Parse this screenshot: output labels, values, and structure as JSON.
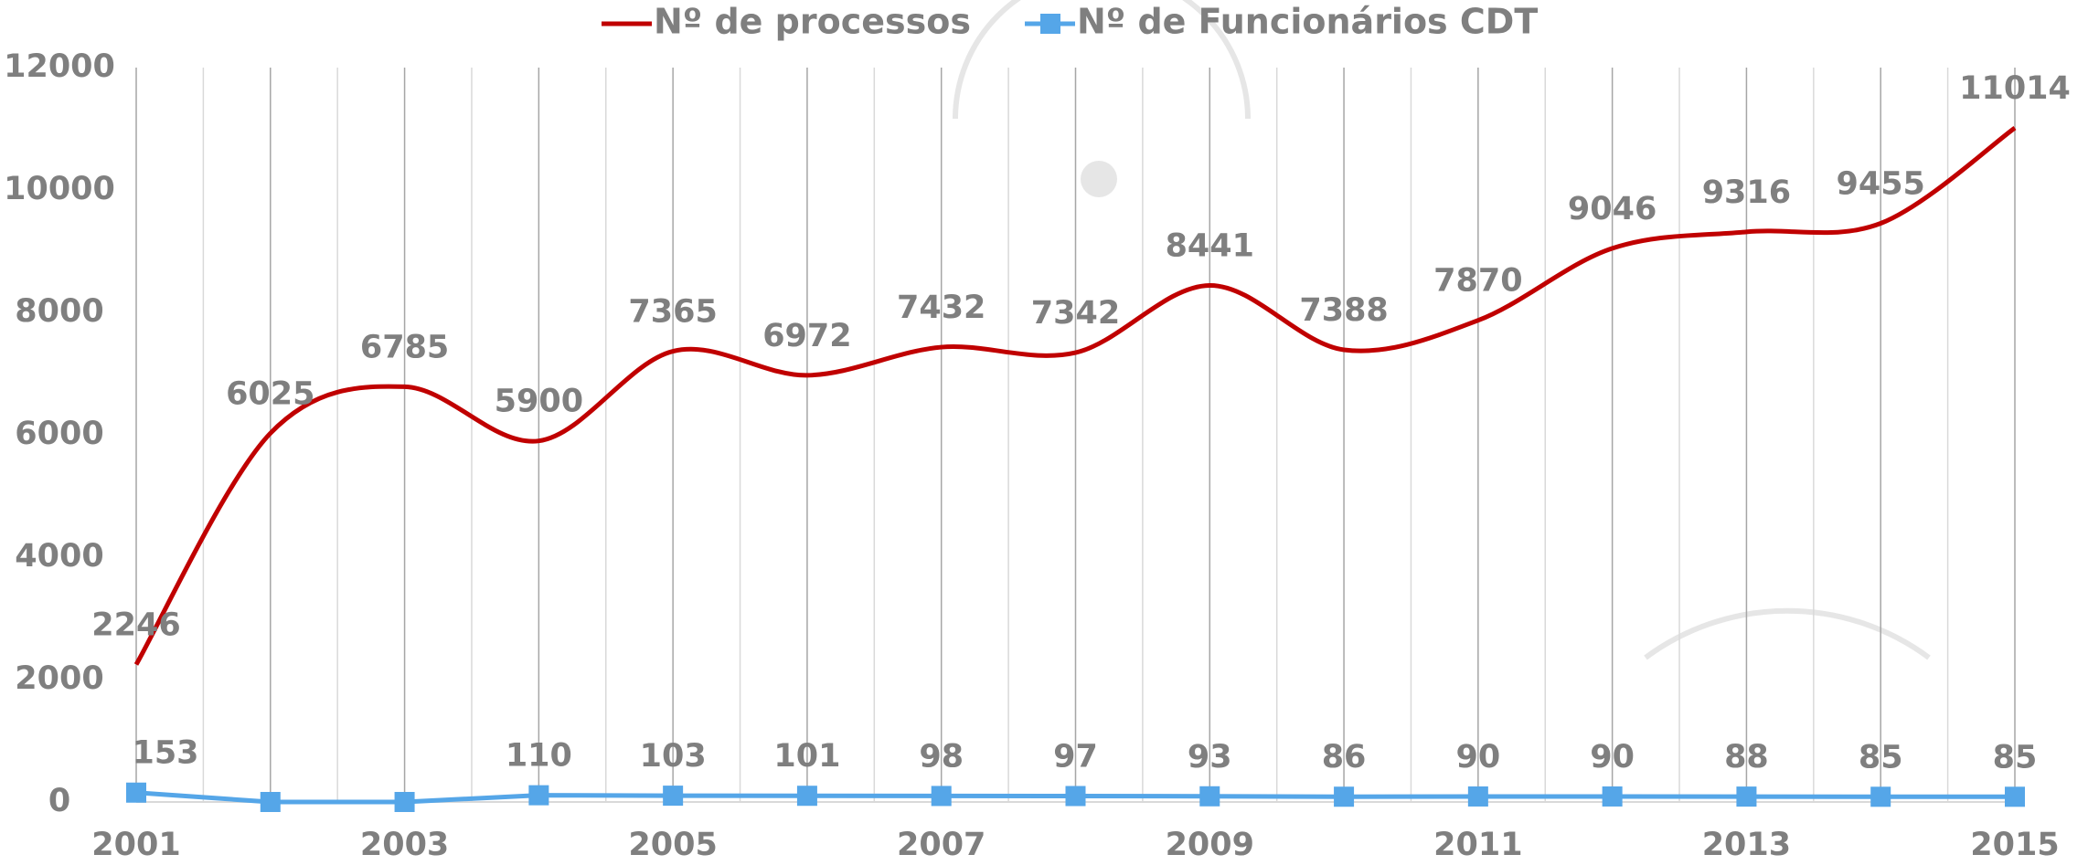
{
  "chart_data": {
    "type": "line",
    "x": [
      2001,
      2002,
      2003,
      2004,
      2005,
      2006,
      2007,
      2008,
      2009,
      2010,
      2011,
      2012,
      2013,
      2014,
      2015
    ],
    "xlim": [
      2001,
      2015
    ],
    "xticks": [
      2001,
      2003,
      2005,
      2007,
      2009,
      2011,
      2013,
      2015
    ],
    "ylim": [
      0,
      12000
    ],
    "yticks": [
      0,
      2000,
      4000,
      6000,
      8000,
      10000,
      12000
    ],
    "grid": true,
    "legend": "top",
    "series": [
      {
        "name": "Nº de processos",
        "color": "#c00000",
        "smooth": true,
        "marker": "none",
        "values": [
          2246,
          6025,
          6785,
          5900,
          7365,
          6972,
          7432,
          7342,
          8441,
          7388,
          7870,
          9046,
          9316,
          9455,
          11014
        ]
      },
      {
        "name": "Nº de Funcionários CDT",
        "color": "#55a6e8",
        "smooth": false,
        "marker": "square",
        "values": [
          153,
          0,
          0,
          110,
          103,
          101,
          98,
          97,
          93,
          86,
          90,
          90,
          88,
          85,
          85
        ]
      }
    ]
  }
}
